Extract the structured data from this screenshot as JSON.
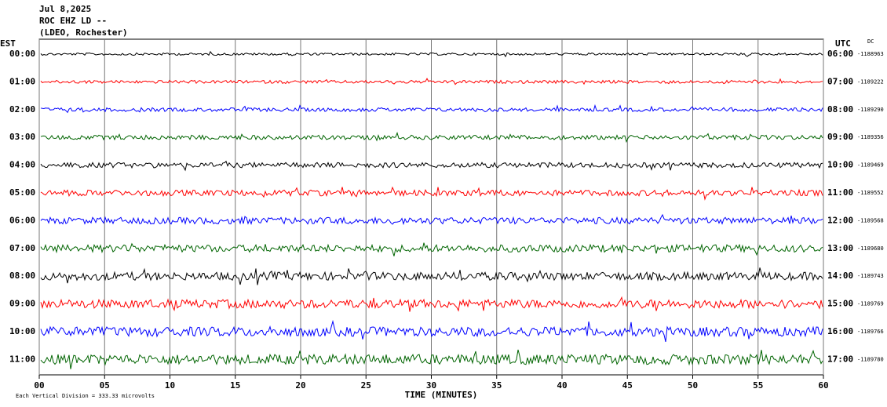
{
  "chart_data": {
    "type": "helicorder",
    "title": "Jul 8,2025",
    "subtitle": "ROC EHZ LD --",
    "station": "(LDEO, Rochester)",
    "left_axis_label": "EST",
    "right_axis_label": "UTC",
    "dc_label": "DC",
    "x_label": "TIME (MINUTES)",
    "scale_note": "Each Vertical Division =  333.33 microvolts",
    "xlim": [
      0,
      60
    ],
    "xticks": [
      {
        "value": 0,
        "label": "00"
      },
      {
        "value": 5,
        "label": "05"
      },
      10,
      15,
      20,
      25,
      30,
      35,
      40,
      45,
      50,
      55,
      60
    ],
    "rows": [
      {
        "est": "00:00",
        "utc": "06:00",
        "dc": -1188963,
        "color": "#000000"
      },
      {
        "est": "01:00",
        "utc": "07:00",
        "dc": -1189222,
        "color": "#ff0000"
      },
      {
        "est": "02:00",
        "utc": "08:00",
        "dc": -1189290,
        "color": "#0000ff"
      },
      {
        "est": "03:00",
        "utc": "09:00",
        "dc": -1189356,
        "color": "#006400"
      },
      {
        "est": "04:00",
        "utc": "10:00",
        "dc": -1189469,
        "color": "#000000"
      },
      {
        "est": "05:00",
        "utc": "11:00",
        "dc": -1189552,
        "color": "#ff0000"
      },
      {
        "est": "06:00",
        "utc": "12:00",
        "dc": -1189568,
        "color": "#0000ff"
      },
      {
        "est": "07:00",
        "utc": "13:00",
        "dc": -1189680,
        "color": "#006400"
      },
      {
        "est": "08:00",
        "utc": "14:00",
        "dc": -1189743,
        "color": "#000000"
      },
      {
        "est": "09:00",
        "utc": "15:00",
        "dc": -1189769,
        "color": "#ff0000"
      },
      {
        "est": "10:00",
        "utc": "16:00",
        "dc": -1189766,
        "color": "#0000ff"
      },
      {
        "est": "11:00",
        "utc": "17:00",
        "dc": -1189780,
        "color": "#006400"
      }
    ]
  }
}
